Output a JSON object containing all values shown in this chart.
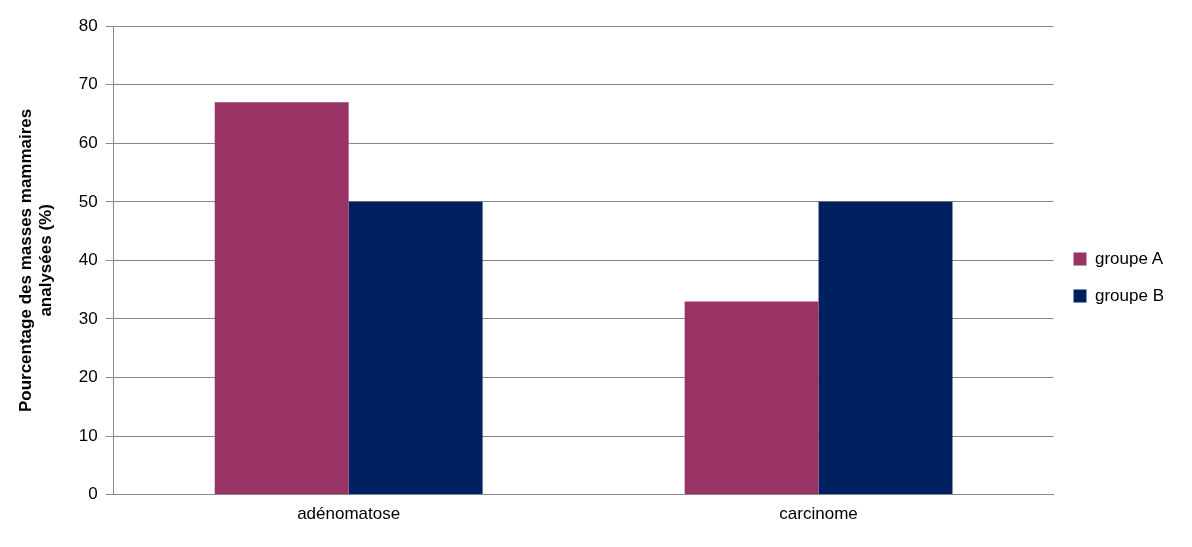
{
  "chart_data": {
    "type": "bar",
    "ylabel": "Pourcentage des masses mammaires analysées (%)",
    "categories": [
      "adénomatose",
      "carcinome"
    ],
    "series": [
      {
        "name": "groupe A",
        "color": "#993366",
        "values": [
          67,
          33
        ]
      },
      {
        "name": "groupe B",
        "color": "#002060",
        "values": [
          50,
          50
        ]
      }
    ],
    "ylim": [
      0,
      80
    ],
    "yticks": [
      0,
      10,
      20,
      30,
      40,
      50,
      60,
      70,
      80
    ],
    "grid": "y",
    "legend": "right"
  }
}
